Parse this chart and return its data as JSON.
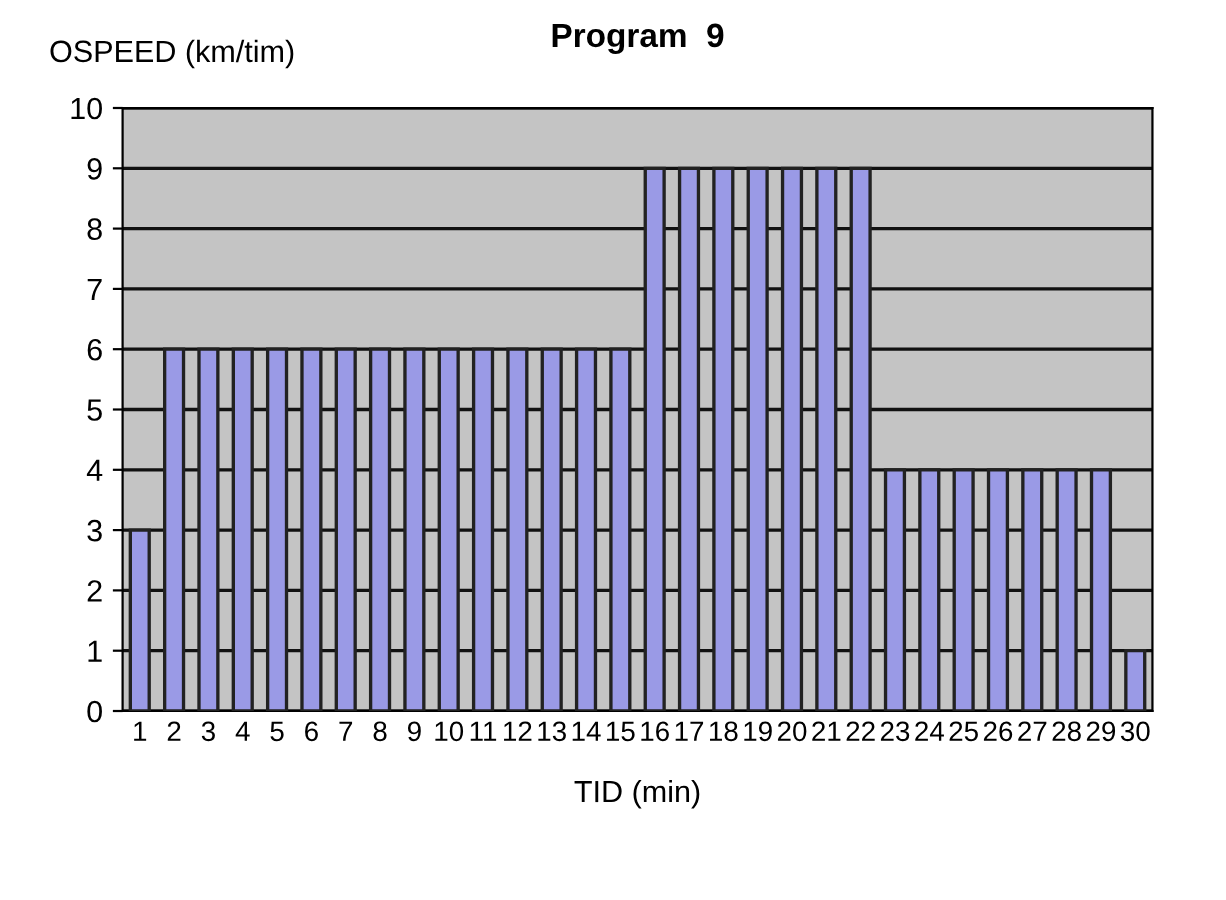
{
  "chart_data": {
    "type": "bar",
    "title": "Program  9",
    "ylabel": "OSPEED (km/tim)",
    "xlabel": "TID (min)",
    "categories": [
      "1",
      "2",
      "3",
      "4",
      "5",
      "6",
      "7",
      "8",
      "9",
      "10",
      "11",
      "12",
      "13",
      "14",
      "15",
      "16",
      "17",
      "18",
      "19",
      "20",
      "21",
      "22",
      "23",
      "24",
      "25",
      "26",
      "27",
      "28",
      "29",
      "30"
    ],
    "values": [
      3,
      6,
      6,
      6,
      6,
      6,
      6,
      6,
      6,
      6,
      6,
      6,
      6,
      6,
      6,
      9,
      9,
      9,
      9,
      9,
      9,
      9,
      4,
      4,
      4,
      4,
      4,
      4,
      4,
      1
    ],
    "color": "#9a9ae6",
    "ylim": [
      0,
      10
    ],
    "yticks": [
      0,
      1,
      2,
      3,
      4,
      5,
      6,
      7,
      8,
      9,
      10
    ],
    "grid": "y"
  }
}
